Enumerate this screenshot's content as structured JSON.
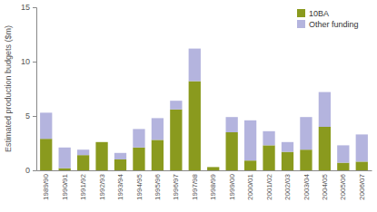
{
  "chart_data": {
    "type": "bar",
    "stacked": true,
    "y_label": "Estimated production budgets ($m)",
    "categories": [
      "1989/90",
      "1990/91",
      "1991/92",
      "1992/93",
      "1993/94",
      "1994/95",
      "1995/96",
      "1996/97",
      "1997/98",
      "1998/99",
      "1999/00",
      "2000/01",
      "2001/02",
      "2002/03",
      "2003/04",
      "2004/05",
      "2005/06",
      "2006/07"
    ],
    "series": [
      {
        "name": "10BA",
        "color": "#8a9a1e",
        "values": [
          2.9,
          0.2,
          1.4,
          2.6,
          1.0,
          2.1,
          2.8,
          5.6,
          8.2,
          0.3,
          3.5,
          0.9,
          2.3,
          1.7,
          1.9,
          4.0,
          0.7,
          0.8
        ]
      },
      {
        "name": "Other funding",
        "color": "#b4b4de",
        "values": [
          2.4,
          1.9,
          0.5,
          0,
          0.6,
          1.7,
          2.0,
          0.8,
          3.0,
          0,
          1.4,
          3.7,
          1.3,
          0.9,
          3.0,
          3.2,
          1.6,
          2.5
        ]
      }
    ],
    "ylim": [
      0,
      15
    ],
    "yticks": [
      0,
      5,
      10,
      15
    ],
    "legend": "upper right"
  }
}
